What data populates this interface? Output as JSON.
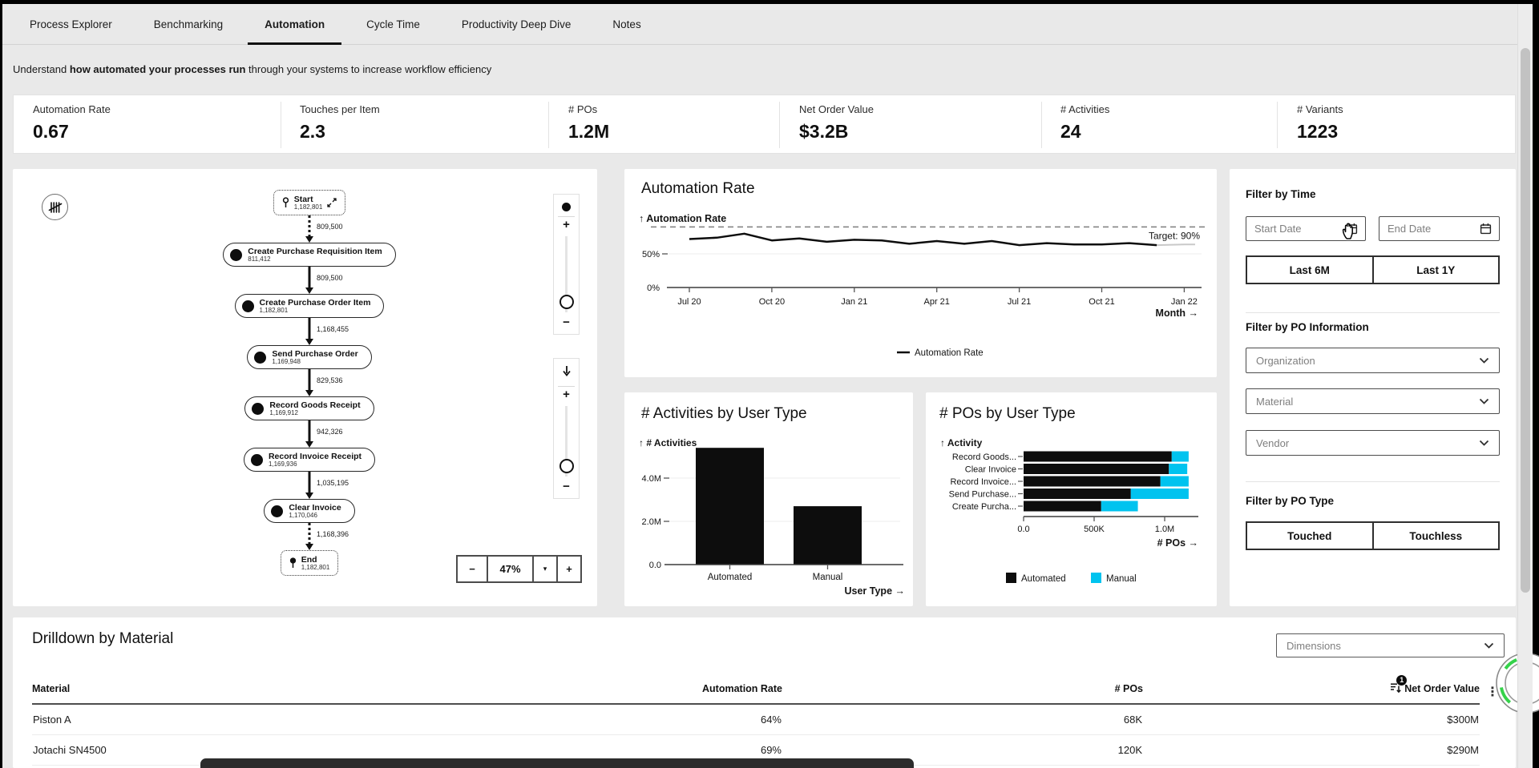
{
  "tabs": [
    {
      "label": "Process Explorer",
      "active": false
    },
    {
      "label": "Benchmarking",
      "active": false
    },
    {
      "label": "Automation",
      "active": true
    },
    {
      "label": "Cycle Time",
      "active": false
    },
    {
      "label": "Productivity Deep Dive",
      "active": false
    },
    {
      "label": "Notes",
      "active": false
    }
  ],
  "subtitle": {
    "prefix": "Understand ",
    "bold": "how automated your processes run",
    "suffix": " through your systems to increase workflow efficiency"
  },
  "kpis": [
    {
      "label": "Automation Rate",
      "value": "0.67"
    },
    {
      "label": "Touches per Item",
      "value": "2.3"
    },
    {
      "label": "# POs",
      "value": "1.2M"
    },
    {
      "label": "Net Order Value",
      "value": "$3.2B"
    },
    {
      "label": "# Activities",
      "value": "24"
    },
    {
      "label": "# Variants",
      "value": "1223"
    }
  ],
  "process_explorer": {
    "nodes": [
      {
        "type": "start",
        "name": "Start",
        "count": "1,182,801"
      },
      {
        "type": "activity",
        "name": "Create Purchase Requisition Item",
        "count": "811,412"
      },
      {
        "type": "activity",
        "name": "Create Purchase Order Item",
        "count": "1,182,801"
      },
      {
        "type": "activity",
        "name": "Send Purchase Order",
        "count": "1,169,948"
      },
      {
        "type": "activity",
        "name": "Record Goods Receipt",
        "count": "1,169,912"
      },
      {
        "type": "activity",
        "name": "Record Invoice Receipt",
        "count": "1,169,936"
      },
      {
        "type": "activity",
        "name": "Clear Invoice",
        "count": "1,170,046"
      },
      {
        "type": "end",
        "name": "End",
        "count": "1,182,801"
      }
    ],
    "edges": [
      {
        "label": "809,500",
        "style": "dotted"
      },
      {
        "label": "809,500",
        "style": "solid"
      },
      {
        "label": "1,168,455",
        "style": "solid"
      },
      {
        "label": "829,536",
        "style": "solid"
      },
      {
        "label": "942,326",
        "style": "solid"
      },
      {
        "label": "1,035,195",
        "style": "solid"
      },
      {
        "label": "1,168,396",
        "style": "dotted"
      }
    ],
    "zoom_toolbar": {
      "minus": "−",
      "value": "47%",
      "dropdown": "▾",
      "plus": "+"
    },
    "slider_labels": {
      "plus": "+",
      "minus": "−"
    }
  },
  "chart_data": [
    {
      "type": "line",
      "title": "Automation Rate",
      "y_axis_label": "↑ Automation Rate",
      "x_axis_label": "Month →",
      "unit": "%",
      "ylim": [
        0,
        100
      ],
      "yticks": [
        {
          "v": 0,
          "label": "0%"
        },
        {
          "v": 50,
          "label": "50%"
        }
      ],
      "target": {
        "value": 90,
        "label": "Target: 90%"
      },
      "x_ticks": [
        "Jul 20",
        "Oct 20",
        "Jan 21",
        "Apr 21",
        "Jul 21",
        "Oct 21",
        "Jan 22"
      ],
      "tick_every": 3,
      "values": [
        72,
        74,
        80,
        70,
        73,
        68,
        71,
        70,
        65,
        69,
        65,
        69,
        63,
        66,
        64,
        64,
        66,
        63,
        64
      ],
      "legend": [
        "Automation Rate"
      ],
      "grid": true,
      "legend_position": "bottom"
    },
    {
      "type": "bar",
      "title": "# Activities by User Type",
      "y_axis_label": "↑ # Activities",
      "x_axis_label": "User Type →",
      "categories": [
        "Automated",
        "Manual"
      ],
      "values": [
        5400000,
        2700000
      ],
      "yticks": [
        {
          "v": 0,
          "label": "0.0"
        },
        {
          "v": 2000000,
          "label": "2.0M"
        },
        {
          "v": 4000000,
          "label": "4.0M"
        }
      ],
      "ylim": [
        0,
        5600000
      ],
      "bar_color": "#0d0d0d"
    },
    {
      "type": "stacked-hbar",
      "title": "# POs by User Type",
      "y_axis_label": "↑ Activity",
      "x_axis_label": "# POs →",
      "categories": [
        "Record Goods...",
        "Clear Invoice",
        "Record Invoice...",
        "Send Purchase...",
        "Create Purcha..."
      ],
      "series": [
        {
          "name": "Automated",
          "color": "#0d0d0d",
          "values": [
            1050000,
            1030000,
            970000,
            760000,
            550000
          ]
        },
        {
          "name": "Manual",
          "color": "#00c3ef",
          "values": [
            120000,
            130000,
            200000,
            410000,
            260000
          ]
        }
      ],
      "xticks": [
        {
          "v": 0,
          "label": "0.0"
        },
        {
          "v": 500000,
          "label": "500K"
        },
        {
          "v": 1000000,
          "label": "1.0M"
        }
      ],
      "xlim": [
        0,
        1170000
      ],
      "legend_position": "bottom"
    }
  ],
  "filter_panel": {
    "time": {
      "heading": "Filter by Time",
      "start_placeholder": "Start Date",
      "end_placeholder": "End Date",
      "quick_buttons": [
        "Last 6M",
        "Last 1Y"
      ]
    },
    "po_information": {
      "heading": "Filter by PO Information",
      "dropdowns": [
        "Organization",
        "Material",
        "Vendor"
      ]
    },
    "po_type": {
      "heading": "Filter by PO Type",
      "buttons": [
        "Touched",
        "Touchless"
      ]
    }
  },
  "drilldown": {
    "title": "Drilldown by Material",
    "dimensions_placeholder": "Dimensions",
    "columns": [
      "Material",
      "Automation Rate",
      "# POs",
      "Net Order Value"
    ],
    "filter_badge_count": "1",
    "rows": [
      [
        "Piston A",
        "64%",
        "68K",
        "$300M"
      ],
      [
        "Jotachi SN4500",
        "69%",
        "120K",
        "$290M"
      ]
    ]
  },
  "help_button": {
    "label": "?"
  },
  "colors": {
    "accent_cyan": "#00c3ef",
    "bar_black": "#0d0d0d",
    "target_gray": "#7d7d7d",
    "help_green": "#35d24a"
  }
}
